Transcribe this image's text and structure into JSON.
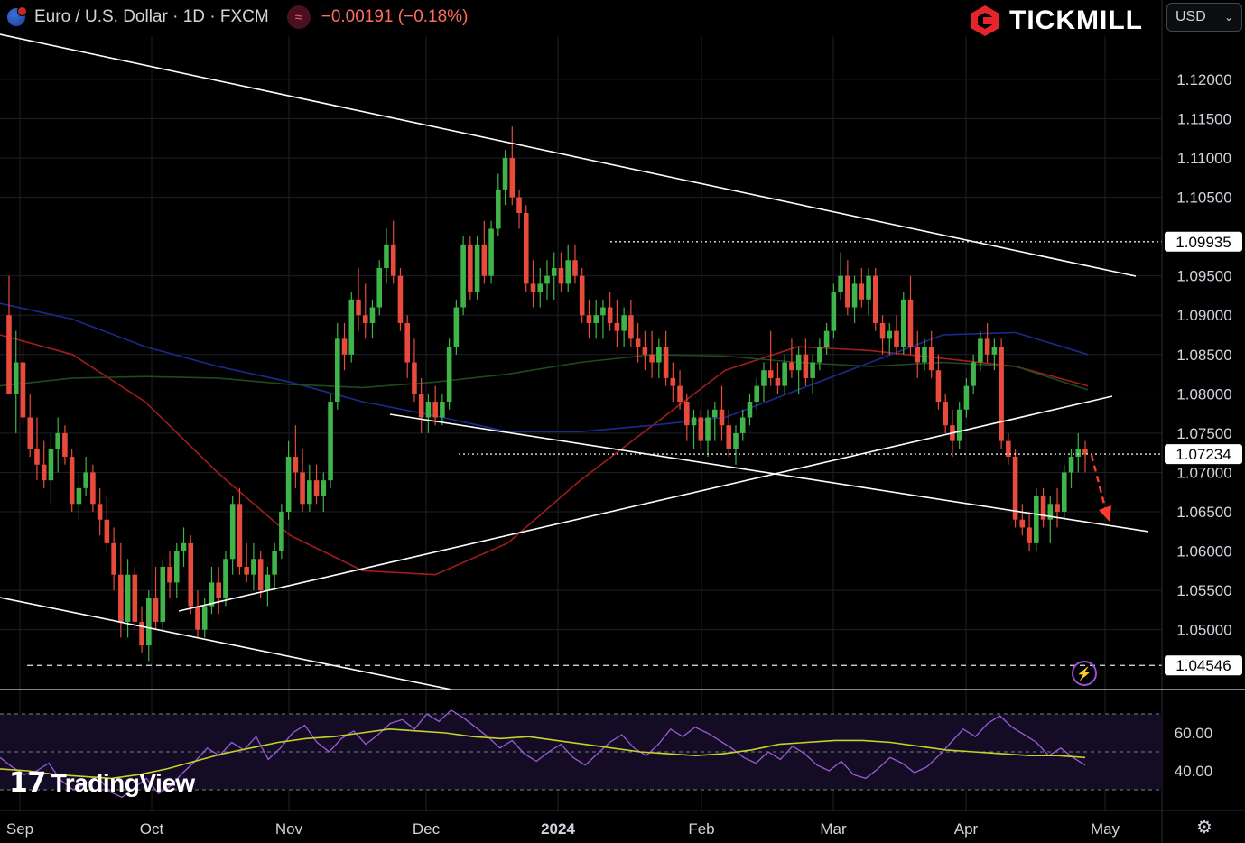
{
  "header": {
    "symbol_title": "Euro / U.S. Dollar · 1D · FXCM",
    "change": "−0.00191 (−0.18%)"
  },
  "brand": {
    "name": "TICKMILL"
  },
  "currency_selector": {
    "value": "USD"
  },
  "watermark": "TradingView",
  "icons": {
    "flag": "eu-us-flag-icon",
    "wave": "approx-wave-icon",
    "chevron": "chevron-down-icon",
    "alert": "lightning-icon",
    "settings": "gear-icon"
  },
  "colors": {
    "background": "#000000",
    "candle_up": "#3fb44a",
    "candle_down": "#e84a3c",
    "ma_red": "#a11d1d",
    "ma_blue": "#1b2a8f",
    "ma_green": "#1f4a1f",
    "rsi_line": "#9b5cd6",
    "rsi_signal": "#c6d12a",
    "trendline": "#ffffff",
    "projection_arrow": "#ff3b2b"
  },
  "chart_data": {
    "type": "candlestick",
    "symbol": "EURUSD",
    "timeframe": "1D",
    "x_tick_labels": [
      "Sep",
      "Oct",
      "Nov",
      "Dec",
      "2024",
      "Feb",
      "Mar",
      "Apr",
      "May"
    ],
    "y_tick_labels": [
      "1.12000",
      "1.11500",
      "1.11000",
      "1.10500",
      "1.09500",
      "1.09000",
      "1.08500",
      "1.08000",
      "1.07500",
      "1.07000",
      "1.06500",
      "1.06000",
      "1.05500",
      "1.05000"
    ],
    "ylim": [
      1.0425,
      1.1255
    ],
    "price_labels": [
      {
        "value": 1.09935,
        "text": "1.09935",
        "style": "dotted"
      },
      {
        "value": 1.07234,
        "text": "1.07234",
        "style": "dotted",
        "current": true
      },
      {
        "value": 1.04546,
        "text": "1.04546",
        "style": "dashed"
      }
    ],
    "candles": [
      [
        1.09,
        1.095,
        1.08,
        1.08
      ],
      [
        1.08,
        1.088,
        1.075,
        1.084
      ],
      [
        1.084,
        1.087,
        1.076,
        1.077
      ],
      [
        1.077,
        1.08,
        1.072,
        1.073
      ],
      [
        1.073,
        1.077,
        1.069,
        1.071
      ],
      [
        1.071,
        1.074,
        1.068,
        1.069
      ],
      [
        1.069,
        1.075,
        1.066,
        1.073
      ],
      [
        1.073,
        1.077,
        1.07,
        1.075
      ],
      [
        1.075,
        1.076,
        1.071,
        1.072
      ],
      [
        1.072,
        1.073,
        1.065,
        1.066
      ],
      [
        1.066,
        1.07,
        1.064,
        1.068
      ],
      [
        1.068,
        1.072,
        1.067,
        1.07
      ],
      [
        1.07,
        1.071,
        1.065,
        1.066
      ],
      [
        1.066,
        1.068,
        1.062,
        1.064
      ],
      [
        1.064,
        1.067,
        1.06,
        1.061
      ],
      [
        1.061,
        1.063,
        1.055,
        1.057
      ],
      [
        1.057,
        1.061,
        1.049,
        1.051
      ],
      [
        1.051,
        1.059,
        1.049,
        1.057
      ],
      [
        1.057,
        1.058,
        1.05,
        1.051
      ],
      [
        1.051,
        1.053,
        1.047,
        1.048
      ],
      [
        1.048,
        1.055,
        1.046,
        1.054
      ],
      [
        1.054,
        1.058,
        1.05,
        1.051
      ],
      [
        1.051,
        1.059,
        1.05,
        1.058
      ],
      [
        1.058,
        1.06,
        1.054,
        1.056
      ],
      [
        1.056,
        1.061,
        1.054,
        1.06
      ],
      [
        1.06,
        1.063,
        1.058,
        1.061
      ],
      [
        1.061,
        1.062,
        1.052,
        1.053
      ],
      [
        1.053,
        1.055,
        1.049,
        1.05
      ],
      [
        1.05,
        1.054,
        1.049,
        1.053
      ],
      [
        1.053,
        1.058,
        1.052,
        1.056
      ],
      [
        1.056,
        1.058,
        1.052,
        1.054
      ],
      [
        1.054,
        1.06,
        1.053,
        1.059
      ],
      [
        1.059,
        1.067,
        1.057,
        1.066
      ],
      [
        1.066,
        1.068,
        1.057,
        1.058
      ],
      [
        1.058,
        1.061,
        1.056,
        1.057
      ],
      [
        1.057,
        1.061,
        1.055,
        1.059
      ],
      [
        1.059,
        1.06,
        1.054,
        1.055
      ],
      [
        1.055,
        1.058,
        1.053,
        1.057
      ],
      [
        1.057,
        1.061,
        1.055,
        1.06
      ],
      [
        1.06,
        1.066,
        1.059,
        1.065
      ],
      [
        1.065,
        1.074,
        1.064,
        1.072
      ],
      [
        1.072,
        1.076,
        1.068,
        1.07
      ],
      [
        1.07,
        1.073,
        1.065,
        1.066
      ],
      [
        1.066,
        1.071,
        1.065,
        1.069
      ],
      [
        1.069,
        1.071,
        1.066,
        1.067
      ],
      [
        1.067,
        1.07,
        1.065,
        1.069
      ],
      [
        1.069,
        1.08,
        1.068,
        1.079
      ],
      [
        1.079,
        1.089,
        1.078,
        1.087
      ],
      [
        1.087,
        1.089,
        1.083,
        1.085
      ],
      [
        1.085,
        1.093,
        1.084,
        1.092
      ],
      [
        1.092,
        1.096,
        1.088,
        1.09
      ],
      [
        1.09,
        1.094,
        1.087,
        1.089
      ],
      [
        1.089,
        1.092,
        1.087,
        1.091
      ],
      [
        1.091,
        1.097,
        1.09,
        1.096
      ],
      [
        1.096,
        1.101,
        1.094,
        1.099
      ],
      [
        1.099,
        1.102,
        1.094,
        1.095
      ],
      [
        1.095,
        1.096,
        1.088,
        1.089
      ],
      [
        1.089,
        1.09,
        1.082,
        1.084
      ],
      [
        1.084,
        1.087,
        1.079,
        1.08
      ],
      [
        1.08,
        1.082,
        1.075,
        1.077
      ],
      [
        1.077,
        1.08,
        1.075,
        1.079
      ],
      [
        1.079,
        1.081,
        1.076,
        1.077
      ],
      [
        1.077,
        1.08,
        1.076,
        1.079
      ],
      [
        1.079,
        1.087,
        1.078,
        1.086
      ],
      [
        1.086,
        1.092,
        1.085,
        1.091
      ],
      [
        1.091,
        1.1,
        1.09,
        1.099
      ],
      [
        1.099,
        1.1,
        1.092,
        1.093
      ],
      [
        1.093,
        1.1,
        1.092,
        1.099
      ],
      [
        1.099,
        1.102,
        1.094,
        1.095
      ],
      [
        1.095,
        1.102,
        1.094,
        1.101
      ],
      [
        1.101,
        1.108,
        1.1,
        1.106
      ],
      [
        1.106,
        1.111,
        1.104,
        1.11
      ],
      [
        1.11,
        1.114,
        1.104,
        1.105
      ],
      [
        1.105,
        1.106,
        1.101,
        1.103
      ],
      [
        1.103,
        1.104,
        1.093,
        1.094
      ],
      [
        1.094,
        1.097,
        1.091,
        1.093
      ],
      [
        1.093,
        1.096,
        1.091,
        1.094
      ],
      [
        1.094,
        1.097,
        1.092,
        1.095
      ],
      [
        1.095,
        1.098,
        1.092,
        1.096
      ],
      [
        1.096,
        1.098,
        1.093,
        1.094
      ],
      [
        1.094,
        1.099,
        1.093,
        1.097
      ],
      [
        1.097,
        1.099,
        1.094,
        1.095
      ],
      [
        1.095,
        1.096,
        1.089,
        1.09
      ],
      [
        1.09,
        1.092,
        1.087,
        1.089
      ],
      [
        1.089,
        1.092,
        1.087,
        1.09
      ],
      [
        1.09,
        1.092,
        1.087,
        1.091
      ],
      [
        1.091,
        1.093,
        1.088,
        1.089
      ],
      [
        1.089,
        1.092,
        1.086,
        1.088
      ],
      [
        1.088,
        1.091,
        1.086,
        1.09
      ],
      [
        1.09,
        1.092,
        1.086,
        1.087
      ],
      [
        1.087,
        1.089,
        1.084,
        1.086
      ],
      [
        1.086,
        1.088,
        1.083,
        1.085
      ],
      [
        1.085,
        1.088,
        1.082,
        1.084
      ],
      [
        1.084,
        1.087,
        1.082,
        1.086
      ],
      [
        1.086,
        1.088,
        1.081,
        1.082
      ],
      [
        1.082,
        1.084,
        1.079,
        1.081
      ],
      [
        1.081,
        1.083,
        1.078,
        1.079
      ],
      [
        1.079,
        1.08,
        1.074,
        1.076
      ],
      [
        1.076,
        1.078,
        1.073,
        1.077
      ],
      [
        1.077,
        1.078,
        1.073,
        1.074
      ],
      [
        1.074,
        1.078,
        1.072,
        1.077
      ],
      [
        1.077,
        1.079,
        1.074,
        1.078
      ],
      [
        1.078,
        1.081,
        1.074,
        1.076
      ],
      [
        1.076,
        1.078,
        1.072,
        1.073
      ],
      [
        1.073,
        1.076,
        1.071,
        1.075
      ],
      [
        1.075,
        1.078,
        1.074,
        1.077
      ],
      [
        1.077,
        1.08,
        1.076,
        1.079
      ],
      [
        1.079,
        1.082,
        1.078,
        1.081
      ],
      [
        1.081,
        1.084,
        1.079,
        1.083
      ],
      [
        1.083,
        1.088,
        1.081,
        1.082
      ],
      [
        1.082,
        1.084,
        1.08,
        1.081
      ],
      [
        1.081,
        1.085,
        1.08,
        1.084
      ],
      [
        1.084,
        1.087,
        1.082,
        1.083
      ],
      [
        1.083,
        1.086,
        1.08,
        1.085
      ],
      [
        1.085,
        1.087,
        1.081,
        1.082
      ],
      [
        1.082,
        1.085,
        1.08,
        1.084
      ],
      [
        1.084,
        1.087,
        1.083,
        1.086
      ],
      [
        1.086,
        1.089,
        1.085,
        1.088
      ],
      [
        1.088,
        1.094,
        1.087,
        1.093
      ],
      [
        1.093,
        1.098,
        1.092,
        1.095
      ],
      [
        1.095,
        1.097,
        1.09,
        1.091
      ],
      [
        1.091,
        1.095,
        1.089,
        1.094
      ],
      [
        1.094,
        1.096,
        1.091,
        1.092
      ],
      [
        1.092,
        1.096,
        1.09,
        1.095
      ],
      [
        1.095,
        1.096,
        1.088,
        1.089
      ],
      [
        1.089,
        1.09,
        1.085,
        1.087
      ],
      [
        1.087,
        1.089,
        1.085,
        1.088
      ],
      [
        1.088,
        1.09,
        1.085,
        1.086
      ],
      [
        1.086,
        1.093,
        1.085,
        1.092
      ],
      [
        1.092,
        1.095,
        1.085,
        1.086
      ],
      [
        1.086,
        1.088,
        1.082,
        1.084
      ],
      [
        1.084,
        1.087,
        1.083,
        1.086
      ],
      [
        1.086,
        1.088,
        1.082,
        1.083
      ],
      [
        1.083,
        1.085,
        1.078,
        1.079
      ],
      [
        1.079,
        1.08,
        1.075,
        1.076
      ],
      [
        1.076,
        1.078,
        1.072,
        1.074
      ],
      [
        1.074,
        1.079,
        1.073,
        1.078
      ],
      [
        1.078,
        1.082,
        1.077,
        1.081
      ],
      [
        1.081,
        1.085,
        1.08,
        1.084
      ],
      [
        1.084,
        1.088,
        1.083,
        1.087
      ],
      [
        1.087,
        1.089,
        1.084,
        1.085
      ],
      [
        1.085,
        1.087,
        1.083,
        1.086
      ],
      [
        1.086,
        1.087,
        1.073,
        1.074
      ],
      [
        1.074,
        1.075,
        1.071,
        1.072
      ],
      [
        1.072,
        1.073,
        1.063,
        1.064
      ],
      [
        1.064,
        1.066,
        1.062,
        1.063
      ],
      [
        1.063,
        1.065,
        1.06,
        1.061
      ],
      [
        1.061,
        1.068,
        1.06,
        1.067
      ],
      [
        1.067,
        1.068,
        1.063,
        1.064
      ],
      [
        1.064,
        1.067,
        1.061,
        1.066
      ],
      [
        1.066,
        1.068,
        1.063,
        1.065
      ],
      [
        1.065,
        1.071,
        1.064,
        1.07
      ],
      [
        1.07,
        1.073,
        1.068,
        1.072
      ],
      [
        1.072,
        1.075,
        1.07,
        1.073
      ],
      [
        1.073,
        1.074,
        1.07,
        1.0723
      ]
    ],
    "moving_averages": [
      {
        "color_key": "ma_red",
        "values": [
          1.0875,
          1.085,
          1.079,
          1.07,
          1.062,
          1.0575,
          1.057,
          1.061,
          1.069,
          1.076,
          1.083,
          1.086,
          1.0855,
          1.0845,
          1.0835,
          1.081
        ]
      },
      {
        "color_key": "ma_blue",
        "values": [
          1.0915,
          1.0895,
          1.086,
          1.0835,
          1.0815,
          1.079,
          1.0772,
          1.0752,
          1.0752,
          1.076,
          1.077,
          1.0805,
          1.084,
          1.0875,
          1.0878,
          1.085
        ]
      },
      {
        "color_key": "ma_green",
        "values": [
          1.081,
          1.082,
          1.0822,
          1.082,
          1.0812,
          1.0808,
          1.0815,
          1.0825,
          1.084,
          1.085,
          1.0848,
          1.084,
          1.0835,
          1.084,
          1.0835,
          1.0805
        ]
      }
    ],
    "rsi": {
      "y_tick_labels": [
        "60.00",
        "40.00"
      ],
      "ylim": [
        20,
        80
      ],
      "levels": [
        70,
        50,
        30
      ],
      "rsi_values": [
        47,
        42,
        38,
        40,
        44,
        35,
        30,
        33,
        37,
        29,
        26,
        31,
        36,
        28,
        32,
        39,
        45,
        52,
        48,
        55,
        51,
        58,
        46,
        52,
        60,
        64,
        55,
        50,
        57,
        61,
        54,
        59,
        65,
        67,
        62,
        70,
        66,
        72,
        68,
        63,
        58,
        52,
        56,
        49,
        45,
        50,
        54,
        47,
        43,
        49,
        55,
        59,
        52,
        48,
        54,
        62,
        58,
        63,
        60,
        56,
        52,
        47,
        44,
        50,
        46,
        53,
        49,
        43,
        40,
        45,
        38,
        36,
        41,
        47,
        44,
        39,
        42,
        48,
        55,
        62,
        58,
        65,
        69,
        63,
        59,
        55,
        48,
        52,
        47,
        43
      ],
      "signal_values": [
        41,
        40,
        38,
        37,
        36,
        38,
        41,
        45,
        49,
        52,
        55,
        57,
        58,
        60,
        62,
        61,
        60,
        58,
        57,
        58,
        56,
        54,
        52,
        50,
        49,
        48,
        49,
        51,
        54,
        55,
        56,
        56,
        55,
        53,
        51,
        50,
        49,
        48,
        48,
        47
      ]
    },
    "annotations": [
      {
        "kind": "trendline",
        "name": "upper-channel"
      },
      {
        "kind": "trendline",
        "name": "lower-channel"
      },
      {
        "kind": "trendline",
        "name": "rising-support"
      },
      {
        "kind": "trendline",
        "name": "falling-support"
      },
      {
        "kind": "projection-arrow",
        "direction": "down"
      }
    ]
  }
}
